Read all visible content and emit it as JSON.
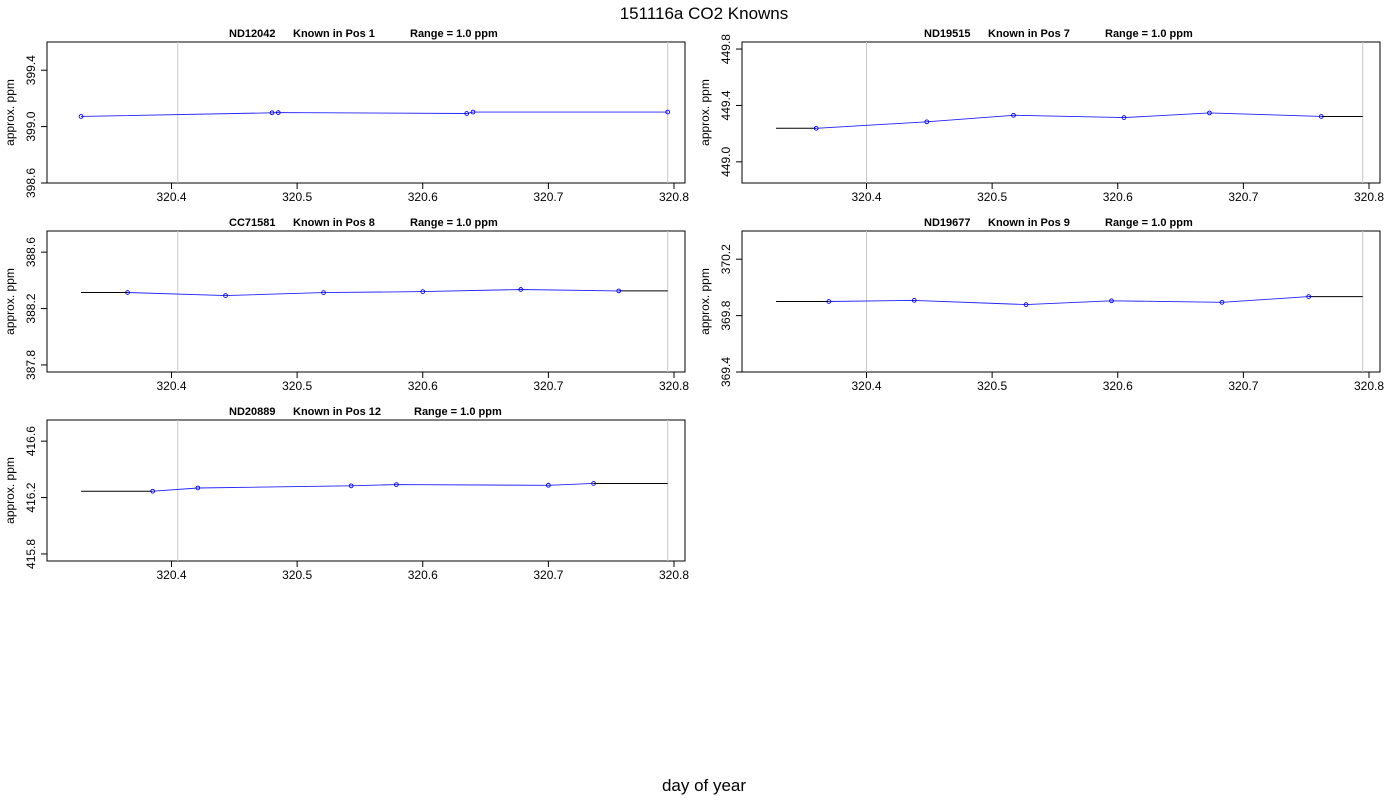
{
  "figure": {
    "title": "151116a   CO2 Knowns",
    "xlabel": "day of year"
  },
  "chart_data": [
    {
      "type": "line",
      "sample": "ND12042",
      "position": "Known in Pos 1",
      "range": "Range = 1.0 ppm",
      "ylabel": "approx. ppm",
      "xlim": [
        320.32,
        320.8
      ],
      "ylim": [
        398.6,
        399.6
      ],
      "xticks": [
        320.4,
        320.5,
        320.6,
        320.7,
        320.8
      ],
      "yticks": [
        398.6,
        399.0,
        399.4
      ],
      "vlines": [
        320.405,
        320.795
      ],
      "points": [
        [
          320.328,
          399.072
        ],
        [
          320.48,
          399.098
        ],
        [
          320.485,
          399.099
        ],
        [
          320.635,
          399.093
        ],
        [
          320.64,
          399.103
        ],
        [
          320.795,
          399.103
        ]
      ],
      "trail": []
    },
    {
      "type": "line",
      "sample": "ND19515",
      "position": "Known in Pos 7",
      "range": "Range = 1.0 ppm",
      "ylabel": "approx. ppm",
      "xlim": [
        320.32,
        320.8
      ],
      "ylim": [
        448.85,
        449.85
      ],
      "xticks": [
        320.4,
        320.5,
        320.6,
        320.7,
        320.8
      ],
      "yticks": [
        449.0,
        449.4,
        449.8
      ],
      "vlines": [
        320.4,
        320.795
      ],
      "points": [
        [
          320.36,
          449.238
        ],
        [
          320.448,
          449.284
        ],
        [
          320.517,
          449.33
        ],
        [
          320.605,
          449.314
        ],
        [
          320.673,
          449.347
        ],
        [
          320.762,
          449.322
        ]
      ],
      "trail": [
        [
          320.328,
          449.238
        ],
        [
          320.795,
          449.322
        ]
      ]
    },
    {
      "type": "line",
      "sample": "CC71581",
      "position": "Known in Pos 8",
      "range": "Range = 1.0 ppm",
      "ylabel": "approx. ppm",
      "xlim": [
        320.32,
        320.8
      ],
      "ylim": [
        387.75,
        388.75
      ],
      "xticks": [
        320.4,
        320.5,
        320.6,
        320.7,
        320.8
      ],
      "yticks": [
        387.8,
        388.2,
        388.6
      ],
      "vlines": [
        320.405,
        320.795
      ],
      "points": [
        [
          320.365,
          388.314
        ],
        [
          320.443,
          388.292
        ],
        [
          320.521,
          388.313
        ],
        [
          320.6,
          388.32
        ],
        [
          320.678,
          388.335
        ],
        [
          320.756,
          388.325
        ]
      ],
      "trail": [
        [
          320.328,
          388.314
        ],
        [
          320.795,
          388.325
        ]
      ]
    },
    {
      "type": "line",
      "sample": "ND19677",
      "position": "Known in Pos 9",
      "range": "Range = 1.0 ppm",
      "ylabel": "approx. ppm",
      "xlim": [
        320.32,
        320.8
      ],
      "ylim": [
        369.4,
        370.4
      ],
      "xticks": [
        320.4,
        320.5,
        320.6,
        320.7,
        320.8
      ],
      "yticks": [
        369.4,
        369.8,
        370.2
      ],
      "vlines": [
        320.4,
        320.795
      ],
      "points": [
        [
          320.37,
          369.9
        ],
        [
          320.438,
          369.908
        ],
        [
          320.527,
          369.878
        ],
        [
          320.595,
          369.905
        ],
        [
          320.683,
          369.894
        ],
        [
          320.752,
          369.935
        ]
      ],
      "trail": [
        [
          320.328,
          369.9
        ],
        [
          320.795,
          369.935
        ]
      ]
    },
    {
      "type": "line",
      "sample": "ND20889",
      "position": "Known in Pos 12",
      "range": "Range = 1.0 ppm",
      "ylabel": "approx. ppm",
      "xlim": [
        320.32,
        320.8
      ],
      "ylim": [
        415.75,
        416.75
      ],
      "xticks": [
        320.4,
        320.5,
        320.6,
        320.7,
        320.8
      ],
      "yticks": [
        415.8,
        416.2,
        416.6
      ],
      "vlines": [
        320.405,
        320.795
      ],
      "points": [
        [
          320.385,
          416.245
        ],
        [
          320.421,
          416.268
        ],
        [
          320.543,
          416.283
        ],
        [
          320.579,
          416.292
        ],
        [
          320.7,
          416.287
        ],
        [
          320.736,
          416.3
        ]
      ],
      "trail": [
        [
          320.328,
          416.245
        ],
        [
          320.795,
          416.3
        ]
      ]
    }
  ]
}
